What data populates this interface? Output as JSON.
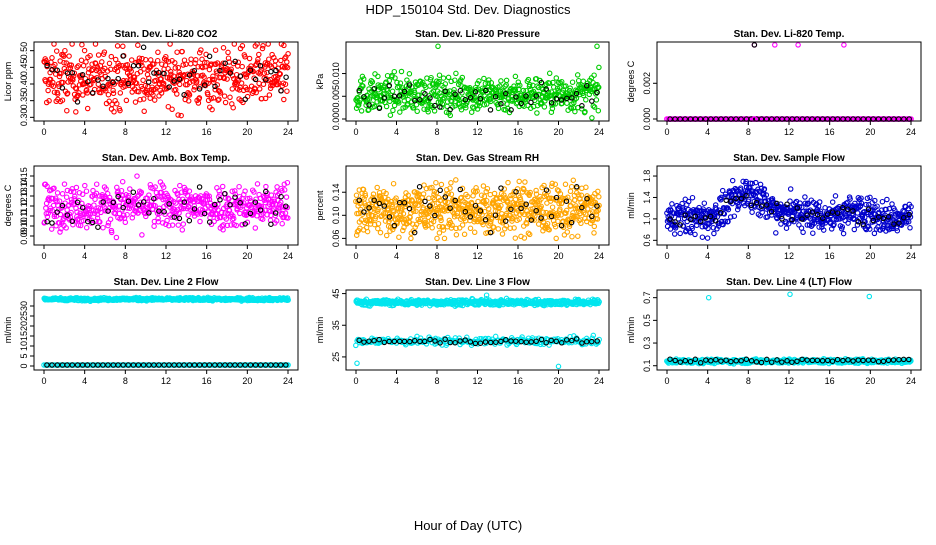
{
  "figure": {
    "title": "HDP_150104  Std. Dev. Diagnostics",
    "xlabel": "Hour of Day (UTC)"
  },
  "chart_data": [
    {
      "type": "scatter",
      "title": "Stan. Dev. Li-820 CO2",
      "ylabel": "Licor ppm",
      "color": "#ff0000",
      "xlim": [
        0,
        24
      ],
      "xticks": [
        0,
        4,
        8,
        12,
        16,
        20,
        24
      ],
      "ylim": [
        0.295,
        0.52
      ],
      "yticks": [
        0.3,
        0.35,
        0.4,
        0.45,
        0.5
      ],
      "yticklabels": [
        "0.30",
        "0.35",
        "0.40",
        "0.45",
        "0.50"
      ],
      "grid": false,
      "series": [
        {
          "color": "#ff0000",
          "pattern": "noise",
          "n": 560,
          "x": [
            0,
            24
          ],
          "center": 0.42,
          "spread": 0.045,
          "min": 0.3,
          "max": 0.52
        },
        {
          "color": "#000000",
          "pattern": "noise",
          "n": 48,
          "x": [
            0.3,
            23.8
          ],
          "center": 0.43,
          "spread": 0.04,
          "min": 0.34,
          "max": 0.51
        }
      ]
    },
    {
      "type": "scatter",
      "title": "Stan. Dev. Li-820 Pressure",
      "ylabel": "kPa",
      "color": "#00cc00",
      "xlim": [
        0,
        24
      ],
      "xticks": [
        0,
        4,
        8,
        12,
        16,
        20,
        24
      ],
      "ylim": [
        0,
        0.0165
      ],
      "yticks": [
        0.0,
        0.005,
        0.01
      ],
      "yticklabels": [
        "0.000",
        "0.005",
        "0.010"
      ],
      "grid": false,
      "series": [
        {
          "color": "#00cc00",
          "pattern": "noise",
          "n": 560,
          "x": [
            0,
            24
          ],
          "center": 0.0055,
          "spread": 0.002,
          "min": 0.0,
          "max": 0.012
        },
        {
          "color": "#000000",
          "pattern": "noise",
          "n": 48,
          "x": [
            0.3,
            23.8
          ],
          "center": 0.005,
          "spread": 0.0015,
          "min": 0.002,
          "max": 0.008
        },
        {
          "color": "#00cc00",
          "pattern": "points",
          "points": [
            [
              8.1,
              0.016
            ],
            [
              23.8,
              0.016
            ]
          ]
        }
      ]
    },
    {
      "type": "scatter",
      "title": "Stan. Dev. Li-820 Temp.",
      "ylabel": "degrees C",
      "color": "#ff00ff",
      "xlim": [
        0,
        24
      ],
      "xticks": [
        0,
        4,
        8,
        12,
        16,
        20,
        24
      ],
      "ylim": [
        0,
        0.0042
      ],
      "yticks": [
        0.0,
        0.002
      ],
      "yticklabels": [
        "0.000",
        "0.002"
      ],
      "grid": false,
      "series": [
        {
          "color": "#ff00ff",
          "pattern": "line",
          "n": 240,
          "x": [
            0,
            24
          ],
          "y": 0.0
        },
        {
          "color": "#000000",
          "pattern": "line",
          "n": 48,
          "x": [
            0.3,
            23.8
          ],
          "y": 0.0
        },
        {
          "color": "#ff00ff",
          "pattern": "points",
          "points": [
            [
              8.6,
              0.00415
            ],
            [
              10.6,
              0.00415
            ],
            [
              12.9,
              0.00415
            ],
            [
              17.4,
              0.00415
            ],
            [
              8.6,
              0.0
            ]
          ]
        },
        {
          "color": "#000000",
          "pattern": "points",
          "points": [
            [
              8.6,
              0.00415
            ]
          ]
        }
      ]
    },
    {
      "type": "scatter",
      "title": "Stan. Dev. Amb. Box Temp.",
      "ylabel": "degrees C",
      "color": "#ff00ff",
      "xlim": [
        0,
        24
      ],
      "xticks": [
        0,
        4,
        8,
        12,
        16,
        20,
        24
      ],
      "ylim": [
        0.083,
        0.158
      ],
      "yticks": [
        0.09,
        0.1,
        0.11,
        0.12,
        0.13,
        0.14,
        0.15
      ],
      "yticklabels": [
        "0.09",
        "0.10",
        "0.11",
        "0.12",
        "0.13",
        "0.14",
        "0.15"
      ],
      "grid": false,
      "series": [
        {
          "color": "#ff00ff",
          "pattern": "noise",
          "n": 560,
          "x": [
            0,
            24
          ],
          "center": 0.12,
          "spread": 0.011,
          "min": 0.086,
          "max": 0.155
        },
        {
          "color": "#000000",
          "pattern": "noise",
          "n": 48,
          "x": [
            0.3,
            23.8
          ],
          "center": 0.118,
          "spread": 0.01,
          "min": 0.095,
          "max": 0.14
        }
      ]
    },
    {
      "type": "scatter",
      "title": "Stan. Dev. Gas Stream RH",
      "ylabel": "percent",
      "color": "#ffa500",
      "xlim": [
        0,
        24
      ],
      "xticks": [
        0,
        4,
        8,
        12,
        16,
        20,
        24
      ],
      "ylim": [
        0.052,
        0.182
      ],
      "yticks": [
        0.06,
        0.1,
        0.14
      ],
      "yticklabels": [
        "0.06",
        "0.10",
        "0.14"
      ],
      "grid": false,
      "series": [
        {
          "color": "#ffa500",
          "pattern": "noise",
          "n": 700,
          "x": [
            0,
            24
          ],
          "center": 0.11,
          "spread": 0.022,
          "min": 0.06,
          "max": 0.18
        },
        {
          "color": "#000000",
          "pattern": "noise",
          "n": 48,
          "x": [
            0.3,
            23.8
          ],
          "center": 0.11,
          "spread": 0.018,
          "min": 0.07,
          "max": 0.175
        }
      ]
    },
    {
      "type": "scatter",
      "title": "Stan. Dev. Sample Flow",
      "ylabel": "ml/min",
      "color": "#0000cc",
      "xlim": [
        0,
        24
      ],
      "xticks": [
        0,
        4,
        8,
        12,
        16,
        20,
        24
      ],
      "ylim": [
        0.55,
        1.95
      ],
      "yticks": [
        0.6,
        1.0,
        1.4,
        1.8
      ],
      "yticklabels": [
        "0.6",
        "1.0",
        "1.4",
        "1.8"
      ],
      "grid": false,
      "series": [
        {
          "color": "#0000cc",
          "pattern": "profile",
          "n": 620,
          "x": [
            0,
            24
          ],
          "profile": [
            [
              0,
              1.0
            ],
            [
              2,
              1.05
            ],
            [
              4,
              1.0
            ],
            [
              6,
              1.2
            ],
            [
              7.5,
              1.5
            ],
            [
              9,
              1.45
            ],
            [
              10,
              1.2
            ],
            [
              13,
              1.1
            ],
            [
              16,
              1.05
            ],
            [
              19,
              1.15
            ],
            [
              22,
              1.0
            ],
            [
              24,
              1.05
            ]
          ],
          "spread": 0.16,
          "min": 0.6,
          "max": 1.9
        },
        {
          "color": "#000000",
          "pattern": "profile",
          "n": 48,
          "x": [
            0.3,
            23.8
          ],
          "profile": [
            [
              0,
              1.0
            ],
            [
              4,
              1.0
            ],
            [
              7.5,
              1.45
            ],
            [
              10,
              1.15
            ],
            [
              16,
              1.05
            ],
            [
              20,
              1.1
            ],
            [
              24,
              1.0
            ]
          ],
          "spread": 0.08,
          "min": 0.8,
          "max": 1.55
        }
      ]
    },
    {
      "type": "scatter",
      "title": "Stan. Dev. Line 2 Flow",
      "ylabel": "ml/min",
      "color": "#00e5ee",
      "xlim": [
        0,
        24
      ],
      "xticks": [
        0,
        4,
        8,
        12,
        16,
        20,
        24
      ],
      "ylim": [
        -1,
        37
      ],
      "yticks": [
        0,
        5,
        10,
        15,
        20,
        25,
        30
      ],
      "yticklabels": [
        "0",
        "5",
        "10",
        "15",
        "20",
        "25",
        "30"
      ],
      "grid": false,
      "series": [
        {
          "color": "#00e5ee",
          "pattern": "noise",
          "n": 560,
          "x": [
            0,
            24
          ],
          "center": 33.4,
          "spread": 0.35,
          "min": 32.3,
          "max": 34.6
        },
        {
          "color": "#00e5ee",
          "pattern": "line",
          "n": 160,
          "x": [
            0,
            24
          ],
          "y": 0.5
        },
        {
          "color": "#000000",
          "pattern": "line",
          "n": 48,
          "x": [
            0.3,
            23.8
          ],
          "y": 0.5
        }
      ]
    },
    {
      "type": "scatter",
      "title": "Stan. Dev. Line 3 Flow",
      "ylabel": "ml/min",
      "color": "#00e5ee",
      "xlim": [
        0,
        24
      ],
      "xticks": [
        0,
        4,
        8,
        12,
        16,
        20,
        24
      ],
      "ylim": [
        21.5,
        45.5
      ],
      "yticks": [
        25,
        35,
        45
      ],
      "yticklabels": [
        "25",
        "35",
        "45"
      ],
      "grid": false,
      "series": [
        {
          "color": "#00e5ee",
          "pattern": "noise",
          "n": 560,
          "x": [
            0,
            24
          ],
          "center": 42.2,
          "spread": 0.45,
          "min": 40.5,
          "max": 44.5
        },
        {
          "color": "#00e5ee",
          "pattern": "noise",
          "n": 260,
          "x": [
            0,
            24
          ],
          "center": 30.0,
          "spread": 0.6,
          "min": 28.5,
          "max": 33.5
        },
        {
          "color": "#000000",
          "pattern": "noise",
          "n": 48,
          "x": [
            0.3,
            23.8
          ],
          "center": 29.9,
          "spread": 0.35,
          "min": 29.0,
          "max": 31.5
        },
        {
          "color": "#00e5ee",
          "pattern": "points",
          "points": [
            [
              0.1,
              23.0
            ],
            [
              20.0,
              22.0
            ],
            [
              12.9,
              44.5
            ]
          ]
        }
      ]
    },
    {
      "type": "scatter",
      "title": "Stan. Dev. Line 4 (LT) Flow",
      "ylabel": "ml/min",
      "color": "#00e5ee",
      "xlim": [
        0,
        24
      ],
      "xticks": [
        0,
        4,
        8,
        12,
        16,
        20,
        24
      ],
      "ylim": [
        0.08,
        0.75
      ],
      "yticks": [
        0.1,
        0.3,
        0.5,
        0.7
      ],
      "yticklabels": [
        "0.1",
        "0.3",
        "0.5",
        "0.7"
      ],
      "grid": false,
      "series": [
        {
          "color": "#00e5ee",
          "pattern": "noise",
          "n": 560,
          "x": [
            0,
            24
          ],
          "center": 0.14,
          "spread": 0.009,
          "min": 0.115,
          "max": 0.17
        },
        {
          "color": "#000000",
          "pattern": "noise",
          "n": 48,
          "x": [
            0.3,
            23.8
          ],
          "center": 0.145,
          "spread": 0.01,
          "min": 0.12,
          "max": 0.175
        },
        {
          "color": "#00e5ee",
          "pattern": "points",
          "points": [
            [
              4.1,
              0.7
            ],
            [
              12.1,
              0.73
            ],
            [
              19.9,
              0.71
            ]
          ]
        }
      ]
    }
  ]
}
